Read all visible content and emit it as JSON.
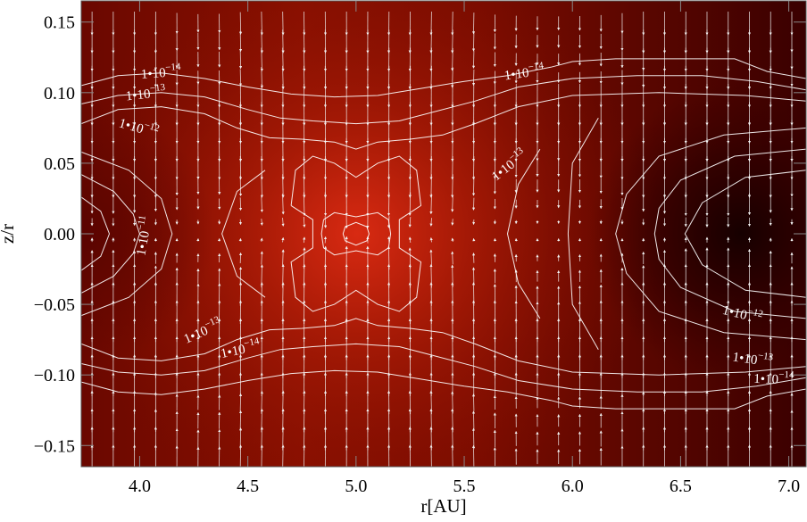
{
  "chart_data": {
    "type": "heatmap",
    "title": "",
    "xlabel": "r[AU]",
    "ylabel": "z/r",
    "xlim": [
      3.73,
      7.08
    ],
    "ylim": [
      -0.165,
      0.165
    ],
    "x_ticks": [
      {
        "value": 4.0,
        "label": "4.0"
      },
      {
        "value": 4.5,
        "label": "4.5"
      },
      {
        "value": 5.0,
        "label": "5.0"
      },
      {
        "value": 5.5,
        "label": "5.5"
      },
      {
        "value": 6.0,
        "label": "6.0"
      },
      {
        "value": 6.5,
        "label": "6.5"
      },
      {
        "value": 7.0,
        "label": "7.0"
      }
    ],
    "y_ticks": [
      {
        "value": 0.15,
        "label": "0.15"
      },
      {
        "value": 0.1,
        "label": "0.10"
      },
      {
        "value": 0.05,
        "label": "0.05"
      },
      {
        "value": 0.0,
        "label": "0.00"
      },
      {
        "value": -0.05,
        "label": "−0.05"
      },
      {
        "value": -0.1,
        "label": "−0.10"
      },
      {
        "value": -0.15,
        "label": "−0.15"
      }
    ],
    "colormap": [
      "#140000",
      "#4a0000",
      "#7a0c00",
      "#b01800",
      "#d82a12"
    ],
    "grid": false,
    "contour_color": "#ffffff",
    "arrow_color": "#f2f2f2",
    "contours": [
      {
        "name": "1e-14 upper",
        "points": [
          [
            3.73,
            0.105
          ],
          [
            3.9,
            0.112
          ],
          [
            4.1,
            0.114
          ],
          [
            4.3,
            0.11
          ],
          [
            4.5,
            0.104
          ],
          [
            4.7,
            0.099
          ],
          [
            4.9,
            0.097
          ],
          [
            5.1,
            0.098
          ],
          [
            5.3,
            0.103
          ],
          [
            5.5,
            0.108
          ],
          [
            5.7,
            0.112
          ],
          [
            5.9,
            0.118
          ],
          [
            6.0,
            0.122
          ],
          [
            6.2,
            0.124
          ],
          [
            6.5,
            0.124
          ],
          [
            6.75,
            0.124
          ],
          [
            6.9,
            0.115
          ],
          [
            7.08,
            0.11
          ]
        ]
      },
      {
        "name": "1e-13 upper",
        "points": [
          [
            3.73,
            0.092
          ],
          [
            3.9,
            0.098
          ],
          [
            4.1,
            0.1
          ],
          [
            4.3,
            0.097
          ],
          [
            4.5,
            0.088
          ],
          [
            4.65,
            0.082
          ],
          [
            4.8,
            0.08
          ],
          [
            5.0,
            0.078
          ],
          [
            5.2,
            0.08
          ],
          [
            5.35,
            0.086
          ],
          [
            5.55,
            0.094
          ],
          [
            5.75,
            0.104
          ],
          [
            6.0,
            0.11
          ],
          [
            6.3,
            0.112
          ],
          [
            6.6,
            0.112
          ],
          [
            6.85,
            0.108
          ],
          [
            7.08,
            0.102
          ]
        ]
      },
      {
        "name": "1e-12 upper",
        "points": [
          [
            3.73,
            0.078
          ],
          [
            3.9,
            0.088
          ],
          [
            4.1,
            0.09
          ],
          [
            4.3,
            0.085
          ],
          [
            4.45,
            0.075
          ],
          [
            4.6,
            0.068
          ],
          [
            4.75,
            0.067
          ],
          [
            4.9,
            0.065
          ],
          [
            5.0,
            0.06
          ],
          [
            5.1,
            0.065
          ],
          [
            5.25,
            0.067
          ],
          [
            5.4,
            0.07
          ],
          [
            5.55,
            0.078
          ],
          [
            5.75,
            0.09
          ],
          [
            6.0,
            0.098
          ],
          [
            6.4,
            0.1
          ],
          [
            6.8,
            0.098
          ],
          [
            7.08,
            0.094
          ]
        ]
      },
      {
        "name": "1e-14 lower",
        "points": [
          [
            3.73,
            -0.105
          ],
          [
            3.9,
            -0.112
          ],
          [
            4.1,
            -0.114
          ],
          [
            4.3,
            -0.11
          ],
          [
            4.5,
            -0.104
          ],
          [
            4.7,
            -0.099
          ],
          [
            4.9,
            -0.097
          ],
          [
            5.1,
            -0.098
          ],
          [
            5.3,
            -0.103
          ],
          [
            5.5,
            -0.108
          ],
          [
            5.7,
            -0.112
          ],
          [
            5.9,
            -0.118
          ],
          [
            6.0,
            -0.122
          ],
          [
            6.2,
            -0.124
          ],
          [
            6.5,
            -0.124
          ],
          [
            6.75,
            -0.124
          ],
          [
            6.9,
            -0.115
          ],
          [
            7.08,
            -0.11
          ]
        ]
      },
      {
        "name": "1e-13 lower",
        "points": [
          [
            3.73,
            -0.092
          ],
          [
            3.9,
            -0.098
          ],
          [
            4.1,
            -0.1
          ],
          [
            4.3,
            -0.097
          ],
          [
            4.5,
            -0.088
          ],
          [
            4.65,
            -0.082
          ],
          [
            4.8,
            -0.08
          ],
          [
            5.0,
            -0.078
          ],
          [
            5.2,
            -0.08
          ],
          [
            5.35,
            -0.086
          ],
          [
            5.55,
            -0.094
          ],
          [
            5.75,
            -0.104
          ],
          [
            6.0,
            -0.11
          ],
          [
            6.3,
            -0.112
          ],
          [
            6.6,
            -0.112
          ],
          [
            6.85,
            -0.108
          ],
          [
            7.08,
            -0.102
          ]
        ]
      },
      {
        "name": "1e-12 lower",
        "points": [
          [
            3.73,
            -0.078
          ],
          [
            3.9,
            -0.088
          ],
          [
            4.1,
            -0.09
          ],
          [
            4.3,
            -0.085
          ],
          [
            4.45,
            -0.075
          ],
          [
            4.6,
            -0.068
          ],
          [
            4.75,
            -0.067
          ],
          [
            4.9,
            -0.065
          ],
          [
            5.0,
            -0.06
          ],
          [
            5.1,
            -0.065
          ],
          [
            5.25,
            -0.067
          ],
          [
            5.4,
            -0.07
          ],
          [
            5.55,
            -0.078
          ],
          [
            5.75,
            -0.09
          ],
          [
            6.0,
            -0.098
          ],
          [
            6.4,
            -0.1
          ],
          [
            6.8,
            -0.098
          ],
          [
            7.08,
            -0.094
          ]
        ]
      },
      {
        "name": "left lobe 1",
        "points": [
          [
            3.73,
            0.058
          ],
          [
            3.95,
            0.045
          ],
          [
            4.1,
            0.025
          ],
          [
            4.15,
            0.0
          ],
          [
            4.1,
            -0.025
          ],
          [
            3.95,
            -0.045
          ],
          [
            3.73,
            -0.058
          ]
        ]
      },
      {
        "name": "left lobe 2",
        "points": [
          [
            3.73,
            0.042
          ],
          [
            3.88,
            0.03
          ],
          [
            3.97,
            0.014
          ],
          [
            4.0,
            0.0
          ],
          [
            3.97,
            -0.014
          ],
          [
            3.88,
            -0.03
          ],
          [
            3.73,
            -0.042
          ]
        ]
      },
      {
        "name": "left lobe 3",
        "points": [
          [
            3.73,
            0.026
          ],
          [
            3.82,
            0.016
          ],
          [
            3.86,
            0.0
          ],
          [
            3.82,
            -0.016
          ],
          [
            3.73,
            -0.026
          ]
        ]
      },
      {
        "name": "center hourglass",
        "points": [
          [
            4.7,
            0.02
          ],
          [
            4.72,
            0.045
          ],
          [
            4.8,
            0.055
          ],
          [
            4.9,
            0.05
          ],
          [
            5.0,
            0.04
          ],
          [
            5.1,
            0.05
          ],
          [
            5.2,
            0.055
          ],
          [
            5.28,
            0.045
          ],
          [
            5.3,
            0.02
          ],
          [
            5.2,
            0.01
          ],
          [
            5.2,
            -0.01
          ],
          [
            5.3,
            -0.02
          ],
          [
            5.28,
            -0.045
          ],
          [
            5.2,
            -0.055
          ],
          [
            5.1,
            -0.05
          ],
          [
            5.0,
            -0.04
          ],
          [
            4.9,
            -0.05
          ],
          [
            4.8,
            -0.055
          ],
          [
            4.72,
            -0.045
          ],
          [
            4.7,
            -0.02
          ],
          [
            4.8,
            -0.01
          ],
          [
            4.8,
            0.01
          ],
          [
            4.7,
            0.02
          ]
        ]
      },
      {
        "name": "center core",
        "points": [
          [
            4.85,
            0.01
          ],
          [
            4.9,
            0.015
          ],
          [
            5.0,
            0.012
          ],
          [
            5.1,
            0.015
          ],
          [
            5.15,
            0.01
          ],
          [
            5.16,
            0.0
          ],
          [
            5.15,
            -0.01
          ],
          [
            5.1,
            -0.015
          ],
          [
            5.0,
            -0.012
          ],
          [
            4.9,
            -0.015
          ],
          [
            4.85,
            -0.01
          ],
          [
            4.84,
            0.0
          ],
          [
            4.85,
            0.01
          ]
        ]
      },
      {
        "name": "center inner",
        "points": [
          [
            4.95,
            0.005
          ],
          [
            5.0,
            0.008
          ],
          [
            5.05,
            0.005
          ],
          [
            5.06,
            0.0
          ],
          [
            5.05,
            -0.005
          ],
          [
            5.0,
            -0.008
          ],
          [
            4.95,
            -0.005
          ],
          [
            4.94,
            0.0
          ],
          [
            4.95,
            0.005
          ]
        ]
      },
      {
        "name": "right lobe 1",
        "points": [
          [
            7.08,
            0.075
          ],
          [
            6.7,
            0.07
          ],
          [
            6.4,
            0.055
          ],
          [
            6.25,
            0.028
          ],
          [
            6.2,
            0.0
          ],
          [
            6.25,
            -0.028
          ],
          [
            6.4,
            -0.055
          ],
          [
            6.7,
            -0.07
          ],
          [
            7.08,
            -0.075
          ]
        ]
      },
      {
        "name": "right lobe 2",
        "points": [
          [
            7.08,
            0.06
          ],
          [
            6.75,
            0.055
          ],
          [
            6.5,
            0.038
          ],
          [
            6.4,
            0.018
          ],
          [
            6.38,
            0.0
          ],
          [
            6.4,
            -0.018
          ],
          [
            6.5,
            -0.038
          ],
          [
            6.75,
            -0.055
          ],
          [
            7.08,
            -0.06
          ]
        ]
      },
      {
        "name": "right lobe 3",
        "points": [
          [
            7.08,
            0.045
          ],
          [
            6.8,
            0.04
          ],
          [
            6.6,
            0.022
          ],
          [
            6.52,
            0.0
          ],
          [
            6.6,
            -0.022
          ],
          [
            6.8,
            -0.04
          ],
          [
            7.08,
            -0.045
          ]
        ]
      },
      {
        "name": "mid left arc",
        "points": [
          [
            4.58,
            0.045
          ],
          [
            4.45,
            0.03
          ],
          [
            4.38,
            0.0
          ],
          [
            4.45,
            -0.03
          ],
          [
            4.58,
            -0.045
          ]
        ]
      },
      {
        "name": "mid right arc",
        "points": [
          [
            5.85,
            0.06
          ],
          [
            5.75,
            0.035
          ],
          [
            5.7,
            0.0
          ],
          [
            5.75,
            -0.035
          ],
          [
            5.85,
            -0.06
          ]
        ]
      },
      {
        "name": "far right arc",
        "points": [
          [
            6.12,
            0.082
          ],
          [
            6.0,
            0.05
          ],
          [
            5.98,
            0.0
          ],
          [
            6.0,
            -0.05
          ],
          [
            6.12,
            -0.082
          ]
        ]
      }
    ],
    "annotations": [
      {
        "mantissa": "1",
        "sep": "•",
        "base": "10",
        "exp": "−14",
        "x": 4.1,
        "y": 0.111,
        "rot": -4
      },
      {
        "mantissa": "1",
        "sep": "•",
        "base": "10",
        "exp": "−13",
        "x": 4.03,
        "y": 0.096,
        "rot": -6
      },
      {
        "mantissa": "1",
        "sep": "•",
        "base": "10",
        "exp": "−12",
        "x": 3.99,
        "y": 0.072,
        "rot": 16
      },
      {
        "mantissa": "1",
        "sep": "•",
        "base": "10",
        "exp": "−11",
        "x": 4.04,
        "y": -0.002,
        "rot": -80
      },
      {
        "mantissa": "1",
        "sep": "•",
        "base": "10",
        "exp": "−13",
        "x": 4.3,
        "y": -0.072,
        "rot": -24
      },
      {
        "mantissa": "1",
        "sep": "•",
        "base": "10",
        "exp": "−14",
        "x": 4.47,
        "y": -0.085,
        "rot": -12
      },
      {
        "mantissa": "1",
        "sep": "•",
        "base": "10",
        "exp": "−14",
        "x": 5.78,
        "y": 0.111,
        "rot": -8
      },
      {
        "mantissa": "1",
        "sep": "•",
        "base": "10",
        "exp": "−13",
        "x": 5.72,
        "y": 0.046,
        "rot": -38
      },
      {
        "mantissa": "1",
        "sep": "•",
        "base": "10",
        "exp": "−12",
        "x": 6.78,
        "y": -0.06,
        "rot": 14
      },
      {
        "mantissa": "1",
        "sep": "•",
        "base": "10",
        "exp": "−13",
        "x": 6.83,
        "y": -0.092,
        "rot": 8
      },
      {
        "mantissa": "1",
        "sep": "•",
        "base": "10",
        "exp": "−14",
        "x": 6.93,
        "y": -0.106,
        "rot": 2
      }
    ]
  }
}
